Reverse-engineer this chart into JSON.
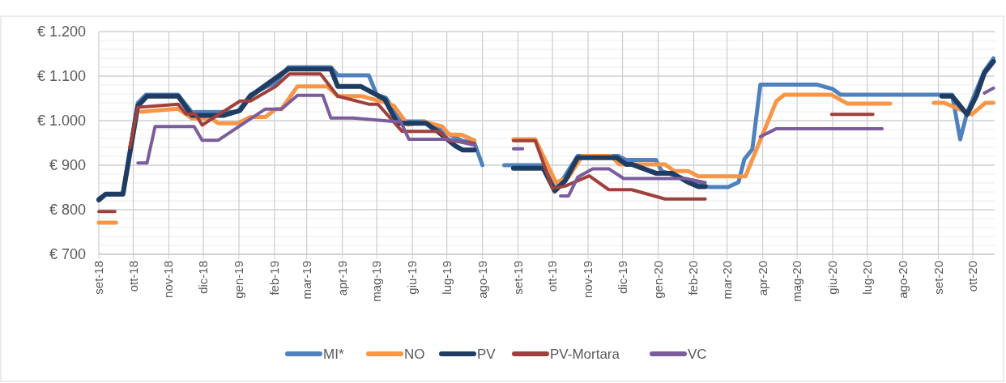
{
  "chart_data": {
    "type": "line",
    "xlim": [
      "2018-09-01",
      "2020-10-20"
    ],
    "xticks": [
      {
        "value": "2018-09-01",
        "label": "set-18"
      },
      {
        "value": "2018-10-01",
        "label": "ott-18"
      },
      {
        "value": "2018-11-01",
        "label": "nov-18"
      },
      {
        "value": "2018-12-01",
        "label": "dic-18"
      },
      {
        "value": "2019-01-01",
        "label": "gen-19"
      },
      {
        "value": "2019-02-01",
        "label": "feb-19"
      },
      {
        "value": "2019-03-01",
        "label": "mar-19"
      },
      {
        "value": "2019-04-01",
        "label": "apr-19"
      },
      {
        "value": "2019-05-01",
        "label": "mag-19"
      },
      {
        "value": "2019-06-01",
        "label": "giu-19"
      },
      {
        "value": "2019-07-01",
        "label": "lug-19"
      },
      {
        "value": "2019-08-01",
        "label": "ago-19"
      },
      {
        "value": "2019-09-01",
        "label": "set-19"
      },
      {
        "value": "2019-10-01",
        "label": "ott-19"
      },
      {
        "value": "2019-11-01",
        "label": "nov-19"
      },
      {
        "value": "2019-12-01",
        "label": "dic-19"
      },
      {
        "value": "2020-01-01",
        "label": "gen-20"
      },
      {
        "value": "2020-02-01",
        "label": "feb-20"
      },
      {
        "value": "2020-03-01",
        "label": "mar-20"
      },
      {
        "value": "2020-04-01",
        "label": "apr-20"
      },
      {
        "value": "2020-05-01",
        "label": "mag-20"
      },
      {
        "value": "2020-06-01",
        "label": "giu-20"
      },
      {
        "value": "2020-07-01",
        "label": "lug-20"
      },
      {
        "value": "2020-08-01",
        "label": "ago-20"
      },
      {
        "value": "2020-09-01",
        "label": "set-20"
      },
      {
        "value": "2020-10-01",
        "label": "ott-20"
      }
    ],
    "ylim": [
      700,
      1200
    ],
    "yticks": [
      {
        "value": 700,
        "label": "€ 700"
      },
      {
        "value": 720,
        "label": null
      },
      {
        "value": 740,
        "label": null
      },
      {
        "value": 760,
        "label": null
      },
      {
        "value": 780,
        "label": null
      },
      {
        "value": 800,
        "label": "€ 800"
      },
      {
        "value": 820,
        "label": null
      },
      {
        "value": 840,
        "label": null
      },
      {
        "value": 860,
        "label": null
      },
      {
        "value": 880,
        "label": null
      },
      {
        "value": 900,
        "label": "€ 900"
      },
      {
        "value": 920,
        "label": null
      },
      {
        "value": 940,
        "label": null
      },
      {
        "value": 960,
        "label": null
      },
      {
        "value": 980,
        "label": null
      },
      {
        "value": 1000,
        "label": "€ 1.000"
      },
      {
        "value": 1020,
        "label": null
      },
      {
        "value": 1040,
        "label": null
      },
      {
        "value": 1060,
        "label": null
      },
      {
        "value": 1080,
        "label": null
      },
      {
        "value": 1100,
        "label": "€ 1.100"
      },
      {
        "value": 1120,
        "label": null
      },
      {
        "value": 1140,
        "label": null
      },
      {
        "value": 1160,
        "label": null
      },
      {
        "value": 1180,
        "label": null
      },
      {
        "value": 1200,
        "label": "€ 1.200"
      }
    ],
    "grid": true,
    "legend": "bottom",
    "marker": "none",
    "line_style": "solid",
    "series": [
      {
        "name": "MI*",
        "color": "#4f81bd",
        "x": [
          "2018-09-01",
          "2018-09-07",
          "2018-09-22",
          "2018-10-05",
          "2018-10-12",
          "2018-11-09",
          "2018-11-21",
          "2018-12-31",
          "2019-01-11",
          "2019-01-24",
          "2019-02-02",
          "2019-02-13",
          "2019-03-22",
          "2019-03-28",
          "2019-04-24",
          "2019-05-01",
          "2019-05-09",
          "2019-05-22",
          "2019-06-12",
          "2019-07-14",
          "2019-07-25",
          "2019-08-01",
          null,
          "2019-08-20",
          "2019-09-23",
          "2019-10-03",
          "2019-10-12",
          "2019-10-23",
          "2019-11-27",
          "2019-12-04",
          "2019-12-30",
          "2020-01-04",
          "2020-02-05",
          "2020-02-14",
          "2020-03-02",
          "2020-03-11",
          "2020-03-16",
          "2020-03-23",
          "2020-03-30",
          "2020-05-18",
          "2020-06-01",
          "2020-06-08",
          "2020-09-13",
          "2020-09-20",
          "2020-09-26",
          "2020-10-11",
          "2020-10-19"
        ],
        "values": [
          825,
          835,
          835,
          1040,
          1058,
          1058,
          1019,
          1020,
          1058,
          1075,
          1085,
          1120,
          1120,
          1102,
          1102,
          1058,
          1051,
          998,
          998,
          955,
          950,
          900,
          null,
          900,
          900,
          846,
          876,
          921,
          921,
          912,
          912,
          887,
          858,
          851,
          851,
          862,
          913,
          936,
          1081,
          1081,
          1071,
          1058,
          1058,
          958,
          1018,
          1111,
          1140
        ]
      },
      {
        "name": "NO",
        "color": "#f79646",
        "x": [
          "2018-09-01",
          "2018-09-16",
          null,
          "2018-10-08",
          "2018-11-09",
          "2018-11-21",
          "2018-12-08",
          "2018-12-14",
          "2018-12-31",
          "2019-01-11",
          "2019-01-24",
          "2019-02-02",
          "2019-02-07",
          "2019-02-21",
          "2019-03-19",
          "2019-03-28",
          "2019-04-18",
          "2019-05-08",
          "2019-05-16",
          "2019-05-28",
          "2019-06-12",
          "2019-06-27",
          "2019-07-03",
          "2019-07-14",
          "2019-07-25",
          null,
          "2019-08-28",
          "2019-09-16",
          "2019-10-04",
          "2019-10-15",
          "2019-10-27",
          "2019-11-21",
          "2019-11-28",
          "2020-01-07",
          "2020-01-15",
          "2020-01-27",
          "2020-02-05",
          "2020-03-17",
          "2020-04-13",
          "2020-04-20",
          "2020-05-31",
          "2020-06-14",
          "2020-07-21",
          null,
          "2020-08-28",
          "2020-09-06",
          "2020-09-30",
          "2020-10-12",
          "2020-10-19"
        ],
        "values": [
          771,
          771,
          null,
          1020,
          1027,
          1005,
          1005,
          994,
          994,
          1008,
          1008,
          1026,
          1026,
          1077,
          1077,
          1055,
          1055,
          1041,
          1033,
          991,
          997,
          987,
          969,
          968,
          956,
          null,
          958,
          958,
          861,
          873,
          921,
          921,
          902,
          902,
          887,
          887,
          875,
          875,
          1044,
          1058,
          1058,
          1038,
          1038,
          null,
          1040,
          1040,
          1014,
          1040,
          1040
        ]
      },
      {
        "name": "PV",
        "color": "#1f3d63",
        "x": [
          "2018-09-01",
          "2018-09-07",
          "2018-09-22",
          "2018-10-05",
          "2018-10-13",
          "2018-11-09",
          "2018-11-21",
          "2018-12-19",
          "2019-01-02",
          "2019-01-11",
          "2019-02-13",
          "2019-03-22",
          "2019-03-28",
          "2019-04-17",
          "2019-05-08",
          "2019-05-19",
          "2019-06-13",
          "2019-06-23",
          "2019-07-08",
          "2019-07-15",
          "2019-07-25",
          null,
          "2019-08-28",
          "2019-09-23",
          "2019-10-03",
          "2019-10-12",
          "2019-10-23",
          "2019-11-26",
          "2019-12-04",
          "2019-12-09",
          "2019-12-30",
          "2020-01-13",
          "2020-01-27",
          "2020-02-05",
          "2020-02-11",
          null,
          "2020-09-04",
          "2020-09-13",
          "2020-09-26",
          "2020-10-04",
          "2020-10-11",
          "2020-10-19"
        ],
        "values": [
          822,
          835,
          835,
          1033,
          1055,
          1055,
          1012,
          1012,
          1023,
          1055,
          1116,
          1116,
          1077,
          1077,
          1048,
          994,
          994,
          976,
          944,
          934,
          934,
          null,
          893,
          893,
          842,
          865,
          917,
          917,
          902,
          902,
          882,
          882,
          862,
          852,
          852,
          null,
          1055,
          1055,
          1014,
          1055,
          1107,
          1133
        ]
      },
      {
        "name": "PV-Mortara",
        "color": "#a0403c",
        "x": [
          "2018-09-01",
          "2018-09-15",
          null,
          "2018-09-28",
          "2018-10-05",
          "2018-11-09",
          "2018-11-16",
          "2018-11-24",
          "2018-11-30",
          "2019-01-02",
          "2019-01-11",
          "2019-02-02",
          "2019-02-14",
          "2019-03-13",
          "2019-03-28",
          "2019-04-24",
          "2019-05-02",
          "2019-05-23",
          "2019-06-24",
          "2019-07-03",
          "2019-07-25",
          null,
          "2019-08-28",
          "2019-09-16",
          "2019-10-01",
          "2019-10-12",
          "2019-11-02",
          "2019-11-19",
          "2019-12-09",
          "2020-01-07",
          "2020-02-11",
          null,
          "2020-05-31",
          "2020-07-06"
        ],
        "values": [
          796,
          796,
          null,
          940,
          1030,
          1037,
          1015,
          1015,
          990,
          1044,
          1044,
          1077,
          1105,
          1105,
          1055,
          1037,
          1037,
          976,
          976,
          955,
          949,
          null,
          955,
          955,
          848,
          853,
          876,
          845,
          845,
          824,
          824,
          null,
          1014,
          1014
        ]
      },
      {
        "name": "VC",
        "color": "#7b5c9c",
        "x": [
          "2018-10-05",
          "2018-10-13",
          "2018-10-20",
          "2018-11-23",
          "2018-11-30",
          "2018-12-14",
          "2019-01-24",
          "2019-02-07",
          "2019-02-21",
          "2019-03-15",
          "2019-03-22",
          "2019-04-10",
          "2019-05-22",
          "2019-05-29",
          "2019-07-03",
          "2019-07-25",
          null,
          "2019-08-28",
          "2019-09-05",
          null,
          "2019-10-08",
          "2019-10-15",
          "2019-10-23",
          "2019-11-05",
          "2019-11-19",
          "2019-12-02",
          "2020-01-25",
          "2020-02-11",
          null,
          "2020-03-30",
          "2020-04-13",
          "2020-07-14",
          null,
          "2020-10-11",
          "2020-10-19"
        ],
        "values": [
          905,
          905,
          987,
          987,
          956,
          956,
          1026,
          1026,
          1057,
          1057,
          1006,
          1006,
          997,
          958,
          958,
          945,
          null,
          937,
          937,
          null,
          831,
          831,
          873,
          892,
          892,
          870,
          870,
          861,
          null,
          964,
          982,
          982,
          null,
          1062,
          1073
        ]
      }
    ]
  }
}
